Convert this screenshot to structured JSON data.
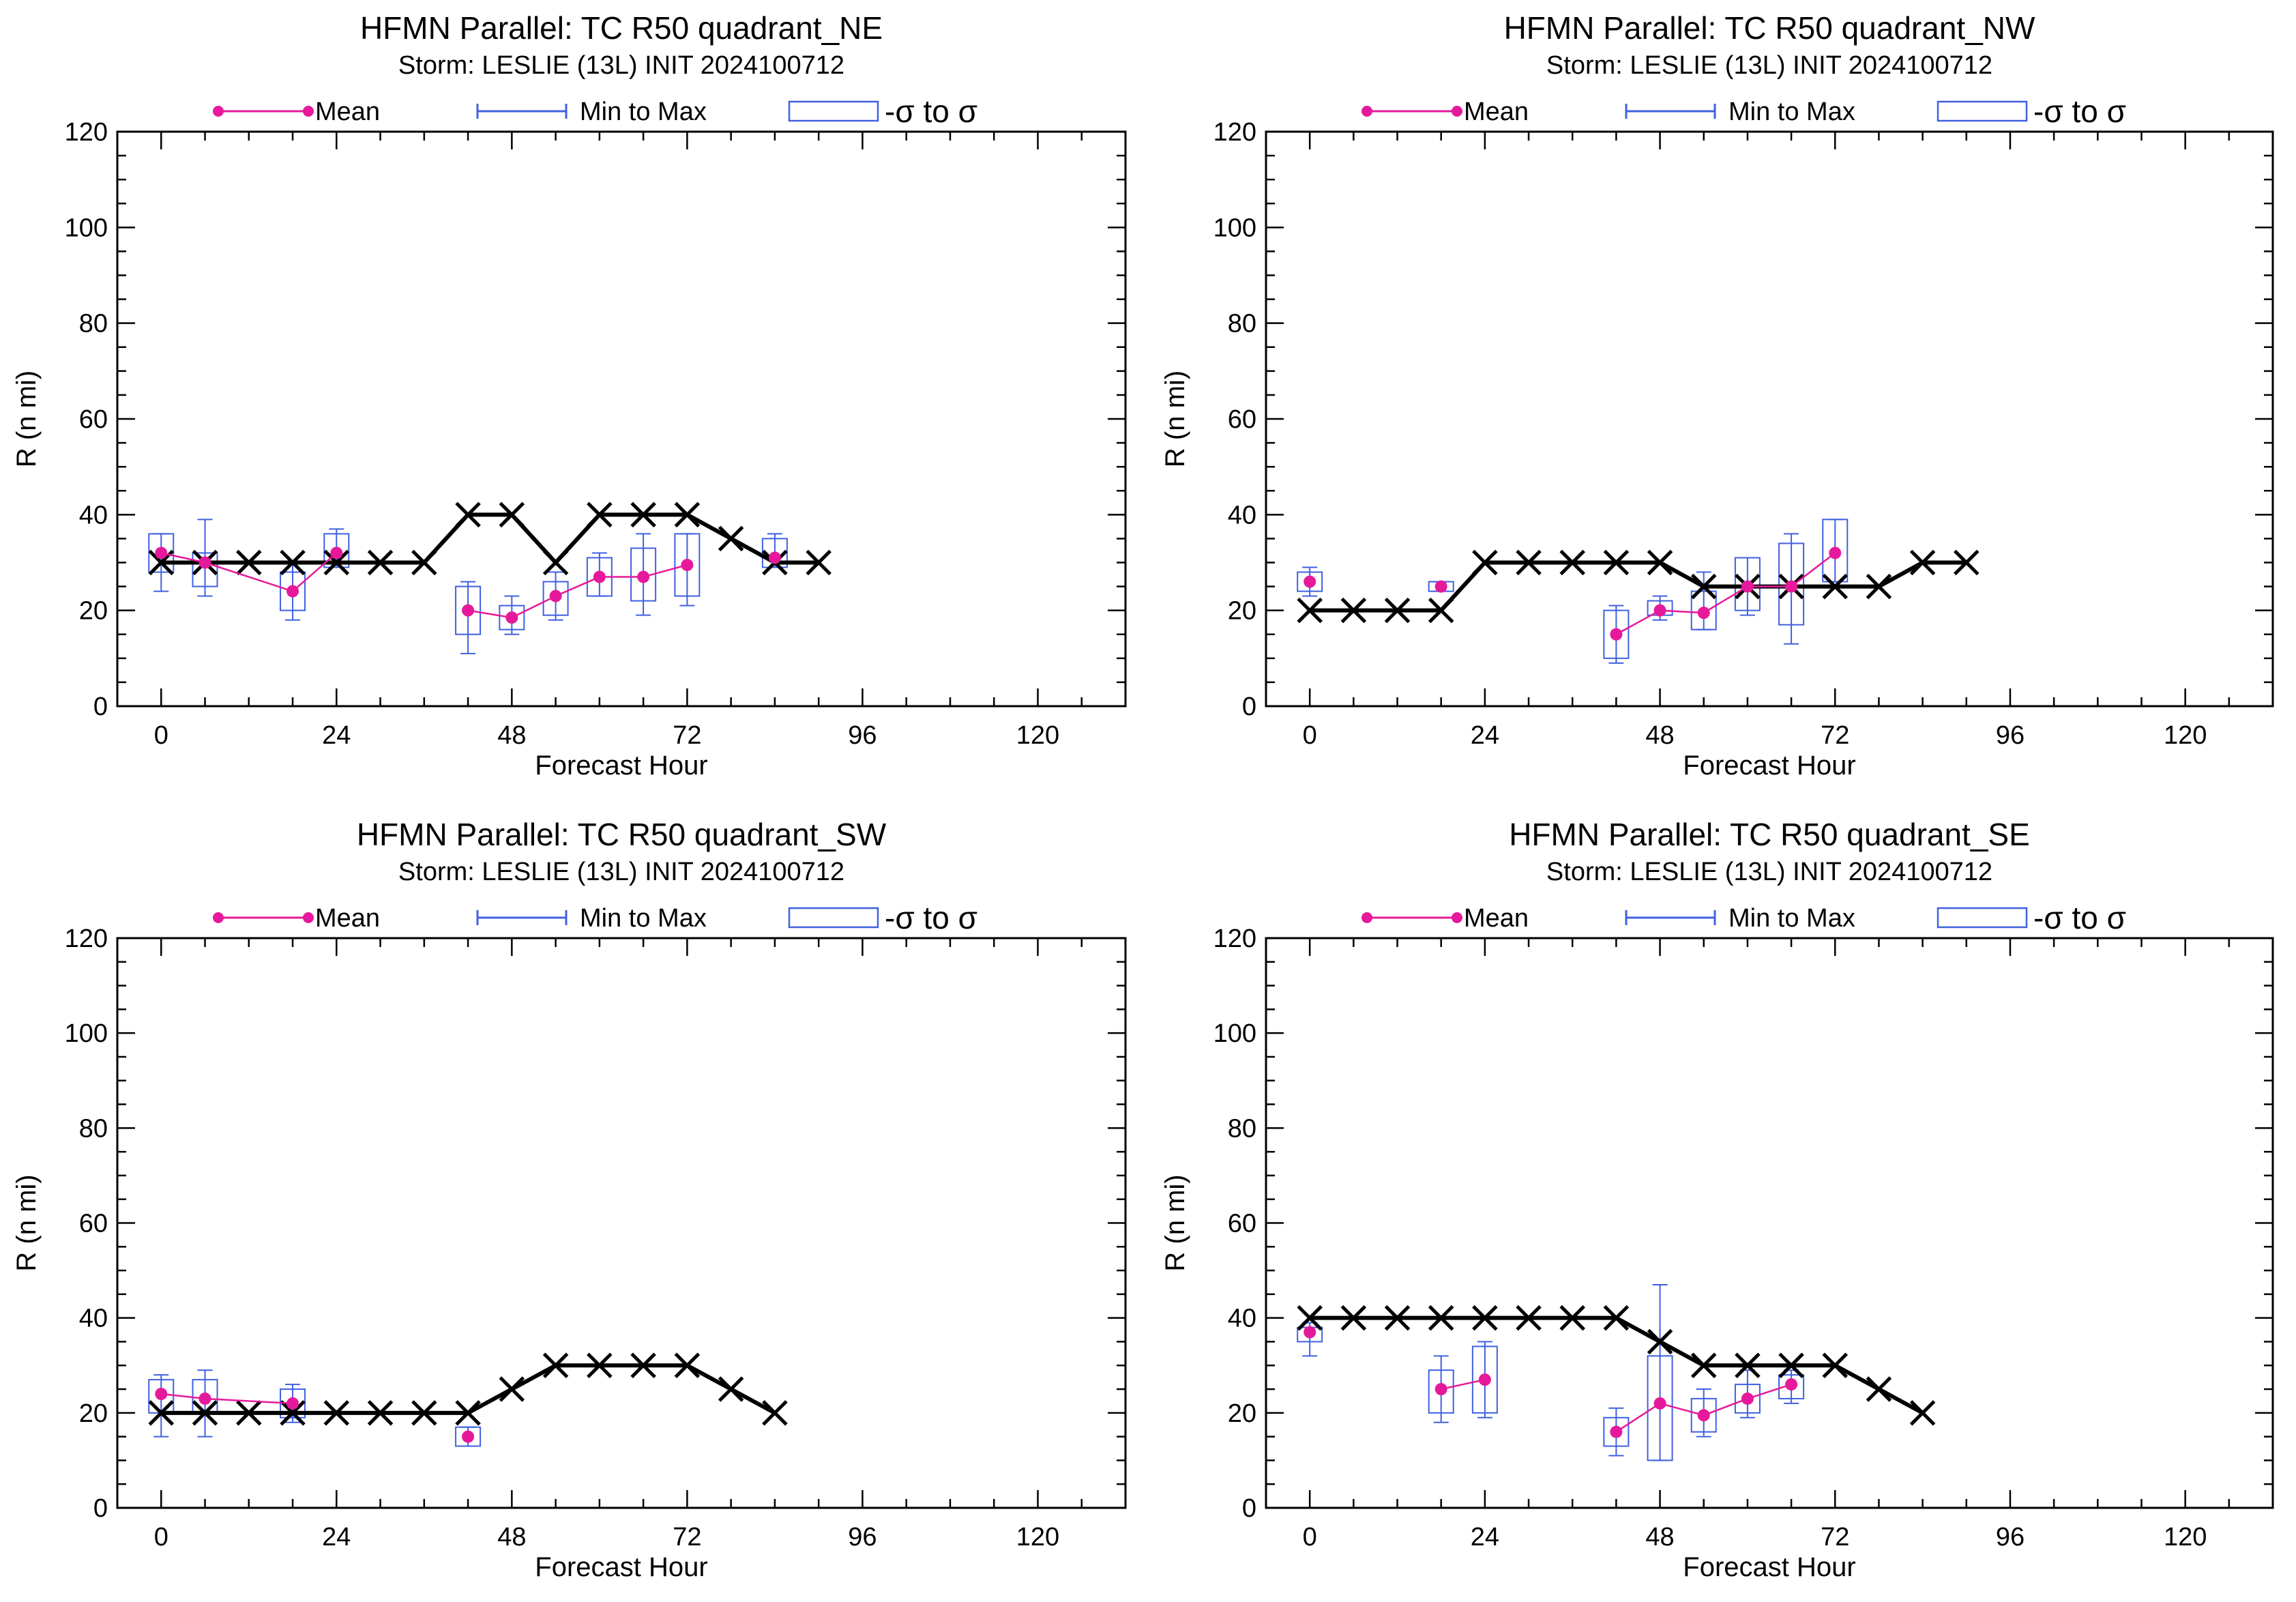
{
  "legend": {
    "mean": "Mean",
    "minmax": "Min to Max",
    "sigma": "-σ to σ"
  },
  "colors": {
    "mean": "#e6199b",
    "box": "#4060e0",
    "best_track": "#000000"
  },
  "chart_data": [
    {
      "type": "line",
      "title": "HFMN Parallel: TC  R50 quadrant_NE",
      "subtitle": "Storm: LESLIE (13L) INIT 2024100712",
      "xlabel": "Forecast Hour",
      "ylabel": "R (n mi)",
      "xlim": [
        -6,
        132
      ],
      "ylim": [
        0,
        120
      ],
      "xticks": [
        0,
        24,
        48,
        72,
        96,
        120
      ],
      "yticks": [
        0,
        20,
        40,
        60,
        80,
        100,
        120
      ],
      "best_track": {
        "x": [
          0,
          6,
          12,
          18,
          24,
          30,
          36,
          42,
          48,
          54,
          60,
          66,
          72,
          78,
          84,
          90
        ],
        "y": [
          30,
          30,
          30,
          30,
          30,
          30,
          30,
          40,
          40,
          30,
          40,
          40,
          40,
          35,
          30,
          30
        ]
      },
      "mean": {
        "x": [
          0,
          6,
          18,
          24
        ],
        "y": [
          32,
          30,
          24,
          32
        ]
      },
      "mean2": {
        "x": [
          42,
          48,
          54,
          60,
          66,
          72
        ],
        "y": [
          20,
          18.5,
          23,
          27,
          27,
          29.5
        ]
      },
      "mean3": {
        "x": [
          84
        ],
        "y": [
          31
        ]
      },
      "boxes": [
        {
          "x": 0,
          "min": 24,
          "max": 36,
          "lo": 28,
          "hi": 36
        },
        {
          "x": 6,
          "min": 23,
          "max": 39,
          "lo": 25,
          "hi": 32
        },
        {
          "x": 18,
          "min": 18,
          "max": 30,
          "lo": 20,
          "hi": 28
        },
        {
          "x": 24,
          "min": 29,
          "max": 37,
          "lo": 29,
          "hi": 36
        },
        {
          "x": 42,
          "min": 11,
          "max": 26,
          "lo": 15,
          "hi": 25
        },
        {
          "x": 48,
          "min": 15,
          "max": 23,
          "lo": 16,
          "hi": 21
        },
        {
          "x": 54,
          "min": 18,
          "max": 28,
          "lo": 19,
          "hi": 26
        },
        {
          "x": 60,
          "min": 23,
          "max": 32,
          "lo": 23,
          "hi": 31
        },
        {
          "x": 66,
          "min": 19,
          "max": 36,
          "lo": 22,
          "hi": 33
        },
        {
          "x": 72,
          "min": 21,
          "max": 36,
          "lo": 23,
          "hi": 36
        },
        {
          "x": 84,
          "min": 29,
          "max": 36,
          "lo": 29,
          "hi": 35
        }
      ]
    },
    {
      "type": "line",
      "title": "HFMN Parallel: TC  R50 quadrant_NW",
      "subtitle": "Storm: LESLIE (13L) INIT 2024100712",
      "xlabel": "Forecast Hour",
      "ylabel": "R (n mi)",
      "xlim": [
        -6,
        132
      ],
      "ylim": [
        0,
        120
      ],
      "xticks": [
        0,
        24,
        48,
        72,
        96,
        120
      ],
      "yticks": [
        0,
        20,
        40,
        60,
        80,
        100,
        120
      ],
      "best_track": {
        "x": [
          0,
          6,
          12,
          18,
          24,
          30,
          36,
          42,
          48,
          54,
          60,
          66,
          72,
          78,
          84,
          90
        ],
        "y": [
          20,
          20,
          20,
          20,
          30,
          30,
          30,
          30,
          30,
          25,
          25,
          25,
          25,
          25,
          30,
          30
        ]
      },
      "mean": {
        "x": [
          0
        ],
        "y": [
          26
        ]
      },
      "mean2": {
        "x": [
          42,
          48,
          54,
          60,
          66,
          72
        ],
        "y": [
          15,
          20,
          19.5,
          25,
          25,
          32
        ]
      },
      "mean3": {
        "x": [
          18
        ],
        "y": [
          25
        ]
      },
      "boxes": [
        {
          "x": 0,
          "min": 23,
          "max": 29,
          "lo": 24,
          "hi": 28
        },
        {
          "x": 18,
          "min": 24,
          "max": 26,
          "lo": 24,
          "hi": 26
        },
        {
          "x": 42,
          "min": 9,
          "max": 21,
          "lo": 10,
          "hi": 20
        },
        {
          "x": 48,
          "min": 18,
          "max": 23,
          "lo": 19,
          "hi": 22
        },
        {
          "x": 54,
          "min": 16,
          "max": 28,
          "lo": 16,
          "hi": 24
        },
        {
          "x": 60,
          "min": 19,
          "max": 31,
          "lo": 20,
          "hi": 31
        },
        {
          "x": 66,
          "min": 13,
          "max": 36,
          "lo": 17,
          "hi": 34
        },
        {
          "x": 72,
          "min": 26,
          "max": 39,
          "lo": 26,
          "hi": 39
        }
      ]
    },
    {
      "type": "line",
      "title": "HFMN Parallel: TC  R50 quadrant_SW",
      "subtitle": "Storm: LESLIE (13L) INIT 2024100712",
      "xlabel": "Forecast Hour",
      "ylabel": "R (n mi)",
      "xlim": [
        -6,
        132
      ],
      "ylim": [
        0,
        120
      ],
      "xticks": [
        0,
        24,
        48,
        72,
        96,
        120
      ],
      "yticks": [
        0,
        20,
        40,
        60,
        80,
        100,
        120
      ],
      "best_track": {
        "x": [
          0,
          6,
          12,
          18,
          24,
          30,
          36,
          42,
          48,
          54,
          60,
          66,
          72,
          78,
          84
        ],
        "y": [
          20,
          20,
          20,
          20,
          20,
          20,
          20,
          20,
          25,
          30,
          30,
          30,
          30,
          25,
          20
        ]
      },
      "mean": {
        "x": [
          0,
          6,
          18
        ],
        "y": [
          24,
          23,
          22
        ]
      },
      "mean2": {
        "x": [
          42
        ],
        "y": [
          15
        ]
      },
      "mean3": {
        "x": [],
        "y": []
      },
      "boxes": [
        {
          "x": 0,
          "min": 15,
          "max": 28,
          "lo": 20,
          "hi": 27
        },
        {
          "x": 6,
          "min": 15,
          "max": 29,
          "lo": 20,
          "hi": 27
        },
        {
          "x": 18,
          "min": 18,
          "max": 26,
          "lo": 19,
          "hi": 25
        },
        {
          "x": 42,
          "min": 13,
          "max": 17,
          "lo": 13,
          "hi": 17
        }
      ]
    },
    {
      "type": "line",
      "title": "HFMN Parallel: TC  R50 quadrant_SE",
      "subtitle": "Storm: LESLIE (13L) INIT 2024100712",
      "xlabel": "Forecast Hour",
      "ylabel": "R (n mi)",
      "xlim": [
        -6,
        132
      ],
      "ylim": [
        0,
        120
      ],
      "xticks": [
        0,
        24,
        48,
        72,
        96,
        120
      ],
      "yticks": [
        0,
        20,
        40,
        60,
        80,
        100,
        120
      ],
      "best_track": {
        "x": [
          0,
          6,
          12,
          18,
          24,
          30,
          36,
          42,
          48,
          54,
          60,
          66,
          72,
          78,
          84
        ],
        "y": [
          40,
          40,
          40,
          40,
          40,
          40,
          40,
          40,
          35,
          30,
          30,
          30,
          30,
          25,
          20
        ]
      },
      "mean": {
        "x": [
          0
        ],
        "y": [
          37
        ]
      },
      "mean2": {
        "x": [
          18,
          24
        ],
        "y": [
          25,
          27
        ]
      },
      "mean3": {
        "x": [
          42,
          48,
          54,
          60,
          66
        ],
        "y": [
          16,
          22,
          19.5,
          23,
          26
        ]
      },
      "boxes": [
        {
          "x": 0,
          "min": 32,
          "max": 39,
          "lo": 35,
          "hi": 38
        },
        {
          "x": 18,
          "min": 18,
          "max": 32,
          "lo": 20,
          "hi": 29
        },
        {
          "x": 24,
          "min": 19,
          "max": 35,
          "lo": 20,
          "hi": 34
        },
        {
          "x": 42,
          "min": 11,
          "max": 21,
          "lo": 13,
          "hi": 19
        },
        {
          "x": 48,
          "min": 10,
          "max": 47,
          "lo": 10,
          "hi": 32
        },
        {
          "x": 54,
          "min": 15,
          "max": 25,
          "lo": 16,
          "hi": 23
        },
        {
          "x": 60,
          "min": 19,
          "max": 29,
          "lo": 20,
          "hi": 26
        },
        {
          "x": 66,
          "min": 22,
          "max": 29,
          "lo": 23,
          "hi": 28
        }
      ]
    }
  ]
}
